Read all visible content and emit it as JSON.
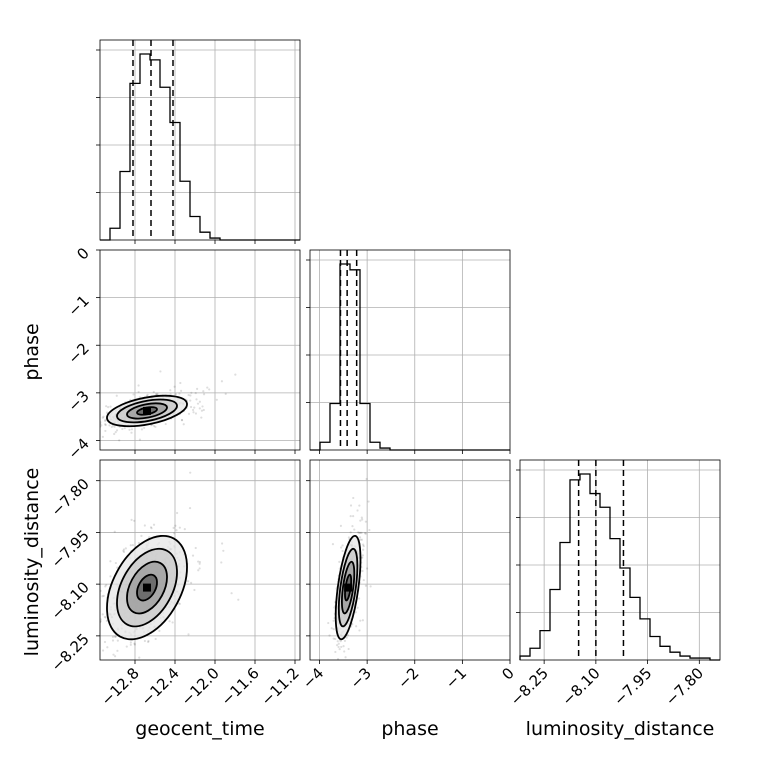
{
  "chart_data": {
    "type": "corner",
    "parameters": [
      "geocent_time",
      "phase",
      "luminosity_distance"
    ],
    "axes": {
      "geocent_time": {
        "label": "geocent_time",
        "range": [
          -13.15,
          -11.15
        ],
        "ticks": [
          -12.8,
          -12.4,
          -12.0,
          -11.6,
          -11.2
        ],
        "tick_labels": [
          "−12.8",
          "−12.4",
          "−12.0",
          "−11.6",
          "−11.2"
        ]
      },
      "phase": {
        "label": "phase",
        "range": [
          -4.2,
          0.0
        ],
        "ticks": [
          -4,
          -3,
          -2,
          -1,
          0
        ],
        "tick_labels": [
          "−4",
          "−3",
          "−2",
          "−1",
          "0"
        ]
      },
      "luminosity_distance": {
        "label": "luminosity_distance",
        "range": [
          -8.32,
          -7.74
        ],
        "ticks": [
          -8.25,
          -8.1,
          -7.95,
          -7.8
        ],
        "tick_labels": [
          "−8.25",
          "−8.10",
          "−7.95",
          "−7.80"
        ]
      }
    },
    "histograms": [
      {
        "parameter": "geocent_time",
        "bin_edges": [
          -13.15,
          -13.05,
          -12.95,
          -12.85,
          -12.75,
          -12.65,
          -12.55,
          -12.45,
          -12.35,
          -12.25,
          -12.15,
          -12.05,
          -11.95,
          -11.85,
          -11.75,
          -11.65,
          -11.55,
          -11.45,
          -11.35,
          -11.25,
          -11.15
        ],
        "counts": [
          0.0,
          0.06,
          0.35,
          0.8,
          0.95,
          0.92,
          0.78,
          0.6,
          0.3,
          0.12,
          0.04,
          0.01,
          0.0,
          0.0,
          0.0,
          0.0,
          0.0,
          0.0,
          0.0,
          0.0
        ],
        "quantiles": [
          -12.82,
          -12.64,
          -12.42
        ]
      },
      {
        "parameter": "phase",
        "bin_edges": [
          -4.2,
          -3.99,
          -3.78,
          -3.57,
          -3.36,
          -3.15,
          -2.94,
          -2.73,
          -2.52,
          -2.31,
          -2.1,
          -1.89,
          -1.68,
          -1.47,
          -1.26,
          -1.05,
          -0.84,
          -0.63,
          -0.42,
          -0.21,
          0.0
        ],
        "counts": [
          0.0,
          0.04,
          0.24,
          0.96,
          0.93,
          0.24,
          0.04,
          0.01,
          0.0,
          0.0,
          0.0,
          0.0,
          0.0,
          0.0,
          0.0,
          0.0,
          0.0,
          0.0,
          0.0,
          0.0
        ],
        "quantiles": [
          -3.56,
          -3.42,
          -3.22
        ]
      },
      {
        "parameter": "luminosity_distance",
        "bin_edges": [
          -8.32,
          -8.291,
          -8.262,
          -8.233,
          -8.204,
          -8.175,
          -8.146,
          -8.117,
          -8.088,
          -8.059,
          -8.03,
          -8.001,
          -7.972,
          -7.943,
          -7.914,
          -7.885,
          -7.856,
          -7.827,
          -7.798,
          -7.769,
          -7.74
        ],
        "counts": [
          0.02,
          0.06,
          0.15,
          0.36,
          0.6,
          0.92,
          0.95,
          0.85,
          0.78,
          0.62,
          0.47,
          0.32,
          0.21,
          0.12,
          0.07,
          0.04,
          0.02,
          0.01,
          0.01,
          0.0
        ],
        "quantiles": [
          -8.15,
          -8.1,
          -8.02
        ]
      }
    ],
    "joint_distributions": [
      {
        "x": "geocent_time",
        "y": "phase",
        "center": [
          -12.68,
          -3.38
        ],
        "sd": [
          0.2,
          0.16
        ],
        "correlation": 0.45
      },
      {
        "x": "geocent_time",
        "y": "luminosity_distance",
        "center": [
          -12.68,
          -8.11
        ],
        "sd": [
          0.2,
          0.075
        ],
        "correlation": 0.4
      },
      {
        "x": "phase",
        "y": "luminosity_distance",
        "center": [
          -3.4,
          -8.11
        ],
        "sd": [
          0.13,
          0.075
        ],
        "correlation": 0.55
      }
    ],
    "contour_levels_sigma": [
      0.5,
      1.0,
      1.5,
      2.0
    ],
    "grid": true,
    "colors": {
      "line": "#000000",
      "grid": "#b0b0b0",
      "points": "#000000"
    }
  }
}
